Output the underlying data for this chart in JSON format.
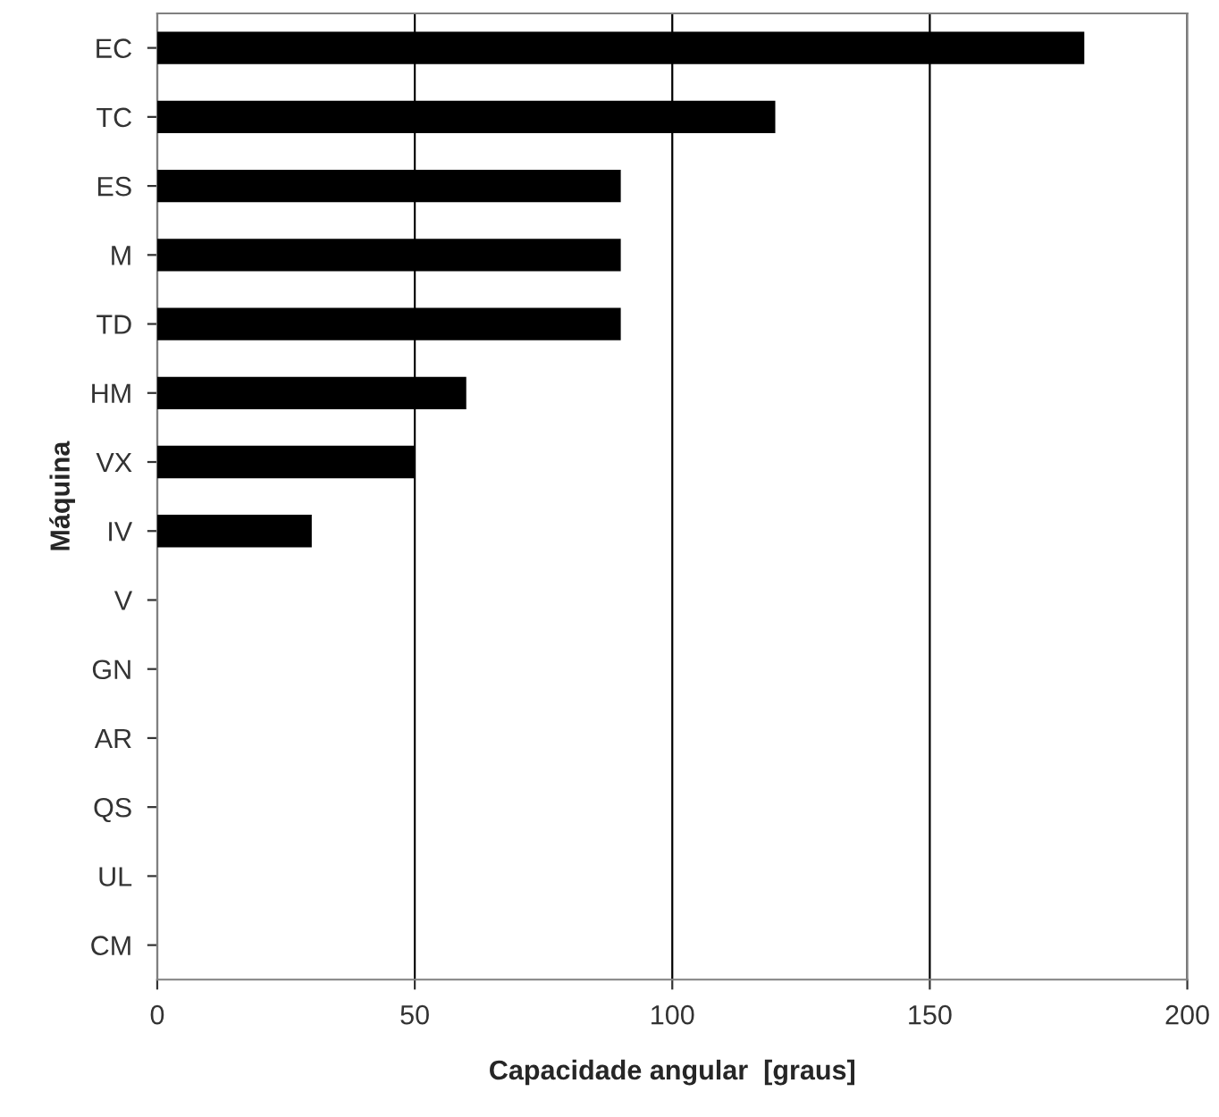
{
  "chart_data": {
    "type": "bar",
    "orientation": "horizontal",
    "xlabel": "Capacidade angular  [graus]",
    "ylabel": "Máquina",
    "categories": [
      "EC",
      "TC",
      "ES",
      "M",
      "TD",
      "HM",
      "VX",
      "IV",
      "V",
      "GN",
      "AR",
      "QS",
      "UL",
      "CM"
    ],
    "values": [
      180,
      120,
      90,
      90,
      90,
      60,
      50,
      30,
      0,
      0,
      0,
      0,
      0,
      0
    ],
    "color": "#000000",
    "xlim": [
      0,
      200
    ],
    "xticks": [
      0,
      50,
      100,
      150,
      200
    ],
    "grid": "x",
    "legend": false
  }
}
